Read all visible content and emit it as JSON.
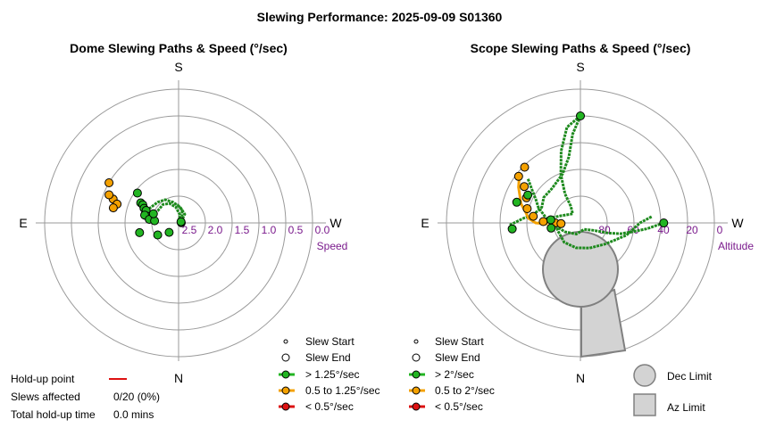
{
  "page_title": "Slewing Performance: 2025-09-09 S01360",
  "colors": {
    "fast": "#22b522",
    "medium": "#f4a100",
    "slow": "#dd1111",
    "fast_line": "#1e8a1e",
    "ring": "#9a9a9a",
    "tick": "#7a1a8c",
    "limit_fill": "#d3d3d3",
    "limit_stroke": "#808080"
  },
  "holdup": {
    "label": "Hold-up point",
    "slews_label": "Slews affected",
    "slews_value": "0/20 (0%)",
    "time_label": "Total hold-up time",
    "time_value": "0.0 mins"
  },
  "chart_data": [
    {
      "type": "polar-scatter",
      "title": "Dome Slewing Paths & Speed (°/sec)",
      "directions": {
        "top": "S",
        "bottom": "N",
        "left": "E",
        "right": "W"
      },
      "radial_label": "Speed",
      "radial_ticks": [
        "2.5",
        "2.0",
        "1.5",
        "1.0",
        "0.5",
        "0.0"
      ],
      "legend": [
        "Slew Start",
        "Slew End",
        "> 1.25°/sec",
        "0.5 to 1.25°/sec",
        "< 0.5°/sec"
      ],
      "paths": [
        {
          "color": "fast",
          "points": [
            [
              265,
              2.45
            ],
            [
              245,
              2.6
            ],
            [
              215,
              2.5
            ],
            [
              190,
              2.35
            ],
            [
              170,
              2.2
            ],
            [
              155,
              2.1
            ],
            [
              140,
              2.05
            ],
            [
              120,
              2.05
            ],
            [
              110,
              2.0
            ]
          ]
        },
        {
          "color": "fast",
          "points": [
            [
              245,
              2.45
            ],
            [
              215,
              2.3
            ],
            [
              185,
              2.2
            ],
            [
              165,
              2.1
            ],
            [
              150,
              2.0
            ],
            [
              135,
              1.95
            ],
            [
              118,
              1.9
            ],
            [
              105,
              1.8
            ]
          ]
        },
        {
          "color": "fast",
          "points": [
            [
              252,
              2.5
            ],
            [
              220,
              2.4
            ],
            [
              195,
              2.25
            ],
            [
              175,
              2.15
            ]
          ]
        }
      ],
      "points": [
        {
          "az": 120,
          "speed": 1.0,
          "class": "medium"
        },
        {
          "az": 110,
          "speed": 1.2,
          "class": "medium"
        },
        {
          "az": 112,
          "speed": 1.1,
          "class": "medium"
        },
        {
          "az": 107,
          "speed": 1.3,
          "class": "medium"
        },
        {
          "az": 103,
          "speed": 1.25,
          "class": "medium"
        },
        {
          "az": 126,
          "speed": 1.55,
          "class": "fast"
        },
        {
          "az": 118,
          "speed": 1.7,
          "class": "fast"
        },
        {
          "az": 117,
          "speed": 1.75,
          "class": "fast"
        },
        {
          "az": 113,
          "speed": 1.8,
          "class": "fast"
        },
        {
          "az": 111,
          "speed": 1.85,
          "class": "fast"
        },
        {
          "az": 102,
          "speed": 1.9,
          "class": "fast"
        },
        {
          "az": 103,
          "speed": 1.85,
          "class": "fast"
        },
        {
          "az": 97,
          "speed": 1.95,
          "class": "fast"
        },
        {
          "az": 95,
          "speed": 2.05,
          "class": "fast"
        },
        {
          "az": 76,
          "speed": 1.75,
          "class": "fast"
        },
        {
          "az": 60,
          "speed": 2.05,
          "class": "fast"
        },
        {
          "az": 45,
          "speed": 2.25,
          "class": "fast"
        },
        {
          "az": 265,
          "speed": 2.45,
          "class": "fast"
        },
        {
          "az": 245,
          "speed": 2.45,
          "class": "fast"
        },
        {
          "az": 110,
          "speed": 2.0,
          "class": "fast"
        }
      ]
    },
    {
      "type": "polar-scatter",
      "title": "Scope Slewing Paths & Speed (°/sec)",
      "directions": {
        "top": "S",
        "bottom": "N",
        "left": "E",
        "right": "W"
      },
      "radial_label": "Altitude",
      "radial_ticks": [
        "80",
        "60",
        "40",
        "20",
        "0"
      ],
      "legend": [
        "Slew Start",
        "Slew End",
        "> 2°/sec",
        "0.5 to 2°/sec",
        "< 0.5°/sec",
        "Dec Limit",
        "Az Limit"
      ],
      "paths": [
        {
          "color": "fast",
          "points": [
            [
              180,
              18
            ],
            [
              172,
              25
            ],
            [
              165,
              40
            ],
            [
              158,
              55
            ],
            [
              152,
              68
            ],
            [
              150,
              77
            ],
            [
              140,
              82
            ],
            [
              110,
              76
            ],
            [
              100,
              70
            ]
          ]
        },
        {
          "color": "fast",
          "points": [
            [
              180,
              18
            ],
            [
              175,
              30
            ],
            [
              170,
              45
            ],
            [
              160,
              55
            ],
            [
              140,
              60
            ],
            [
              125,
              60
            ],
            [
              112,
              62
            ],
            [
              100,
              58
            ],
            [
              95,
              52
            ],
            [
              88,
              42
            ]
          ]
        },
        {
          "color": "fast",
          "points": [
            [
              270,
              34
            ],
            [
              275,
              45
            ],
            [
              280,
              55
            ],
            [
              285,
              62
            ],
            [
              290,
              70
            ],
            [
              300,
              80
            ],
            [
              330,
              85
            ],
            [
              20,
              82
            ],
            [
              60,
              78
            ],
            [
              90,
              70
            ]
          ]
        },
        {
          "color": "fast",
          "points": [
            [
              265,
              42
            ],
            [
              270,
              50
            ],
            [
              285,
              58
            ],
            [
              310,
              68
            ],
            [
              340,
              72
            ],
            [
              10,
              73
            ],
            [
              40,
              73
            ],
            [
              70,
              74
            ],
            [
              95,
              72
            ]
          ]
        },
        {
          "color": "fast",
          "points": [
            [
              130,
              44
            ],
            [
              125,
              50
            ],
            [
              118,
              56
            ],
            [
              110,
              60
            ],
            [
              100,
              66
            ],
            [
              85,
              70
            ]
          ]
        },
        {
          "color": "medium",
          "points": [
            [
              128,
              38
            ],
            [
              120,
              42
            ],
            [
              115,
              45
            ],
            [
              108,
              48
            ],
            [
              102,
              52
            ],
            [
              95,
              55
            ],
            [
              90,
              60
            ],
            [
              88,
              68
            ]
          ]
        }
      ],
      "points": [
        {
          "az": 135,
          "alt": 37,
          "class": "medium"
        },
        {
          "az": 127,
          "alt": 38,
          "class": "medium"
        },
        {
          "az": 123,
          "alt": 45,
          "class": "medium"
        },
        {
          "az": 115,
          "alt": 50,
          "class": "medium"
        },
        {
          "az": 105,
          "alt": 53,
          "class": "medium"
        },
        {
          "az": 98,
          "alt": 58,
          "class": "medium"
        },
        {
          "az": 92,
          "alt": 65,
          "class": "medium"
        },
        {
          "az": 90,
          "alt": 73,
          "class": "medium"
        },
        {
          "az": 88,
          "alt": 77,
          "class": "medium"
        },
        {
          "az": 180,
          "alt": 18,
          "class": "fast"
        },
        {
          "az": 270,
          "alt": 34,
          "class": "fast"
        },
        {
          "az": 108,
          "alt": 45,
          "class": "fast"
        },
        {
          "az": 118,
          "alt": 50,
          "class": "fast"
        },
        {
          "az": 85,
          "alt": 44,
          "class": "fast"
        },
        {
          "az": 80,
          "alt": 70,
          "class": "fast"
        },
        {
          "az": 96,
          "alt": 70,
          "class": "fast"
        }
      ]
    }
  ]
}
